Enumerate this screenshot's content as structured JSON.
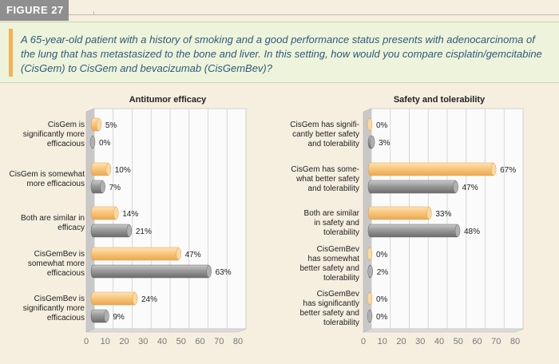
{
  "figure_label": "FIGURE 27",
  "question": "A 65-year-old patient with a history of smoking and a good performance status presents with adenocarcinoma of the lung that has metastasized to the bone and liver. In this setting, how would you compare cisplatin/gemcitabine (CisGem) to CisGem and bevacizumab (CisGemBev)?",
  "colors": {
    "series_1": "#f7c47a",
    "series_2": "#8e8e8e",
    "accent": "#f3b254",
    "question_text": "#2d5a7a"
  },
  "chart_data": [
    {
      "type": "bar",
      "orientation": "horizontal",
      "title": "Antitumor efficacy",
      "categories": [
        "CisGem is significantly more efficacious",
        "CisGem is somewhat more efficacious",
        "Both are similar in efficacy",
        "CisGemBev is somewhat more efficacious",
        "CisGemBev is significantly more efficacious"
      ],
      "category_lines": [
        [
          "CisGem is",
          "significantly more",
          "efficacious"
        ],
        [
          "CisGem is somewhat",
          "more efficacious"
        ],
        [
          "Both are similar in",
          "efficacy"
        ],
        [
          "CisGemBev is",
          "somewhat more",
          "efficacious"
        ],
        [
          "CisGemBev is",
          "significantly more",
          "efficacious"
        ]
      ],
      "series": [
        {
          "values": [
            5,
            10,
            14,
            47,
            24
          ],
          "labels": [
            "5%",
            "10%",
            "14%",
            "47%",
            "24%"
          ]
        },
        {
          "values": [
            0,
            7,
            21,
            63,
            9
          ],
          "labels": [
            "0%",
            "7%",
            "21%",
            "63%",
            "9%"
          ]
        }
      ],
      "xlim": [
        0,
        80
      ],
      "ticks": [
        0,
        10,
        20,
        30,
        40,
        50,
        60,
        70,
        80
      ],
      "grid": true
    },
    {
      "type": "bar",
      "orientation": "horizontal",
      "title": "Safety and tolerability",
      "categories": [
        "CisGem has significantly better safety and tolerability",
        "CisGem has somewhat better safety and tolerability",
        "Both are similar in safety and tolerability",
        "CisGemBev has somewhat better safety and tolerability",
        "CisGemBev has significantly better safety and tolerability"
      ],
      "category_lines": [
        [
          "CisGem has signifi-",
          "cantly better safety",
          "and tolerability"
        ],
        [
          "CisGem has some-",
          "what better safety",
          "and tolerability"
        ],
        [
          "Both are similar",
          "in safety and",
          "tolerability"
        ],
        [
          "CisGemBev",
          "has somewhat",
          "better safety and",
          "tolerability"
        ],
        [
          "CisGemBev",
          "has significantly",
          "better safety and",
          "tolerability"
        ]
      ],
      "series": [
        {
          "values": [
            0,
            67,
            33,
            0,
            0
          ],
          "labels": [
            "0%",
            "67%",
            "33%",
            "0%",
            "0%"
          ]
        },
        {
          "values": [
            3,
            47,
            48,
            2,
            0
          ],
          "labels": [
            "3%",
            "47%",
            "48%",
            "2%",
            "0%"
          ]
        }
      ],
      "xlim": [
        0,
        80
      ],
      "ticks": [
        0,
        10,
        20,
        30,
        40,
        50,
        60,
        70,
        80
      ],
      "grid": true
    }
  ]
}
